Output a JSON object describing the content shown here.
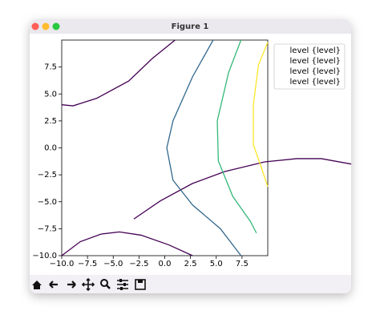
{
  "window": {
    "title": "Figure 1"
  },
  "chart_data": {
    "type": "contour",
    "xlim": [
      -10,
      10
    ],
    "ylim": [
      -10,
      10
    ],
    "xticks": [
      {
        "value": -10,
        "label": "−10.0"
      },
      {
        "value": -7.5,
        "label": "−7.5"
      },
      {
        "value": -5,
        "label": "−5.0"
      },
      {
        "value": -2.5,
        "label": "−2.5"
      },
      {
        "value": 0,
        "label": "0.0"
      },
      {
        "value": 2.5,
        "label": "2.5"
      },
      {
        "value": 5,
        "label": "5.0"
      },
      {
        "value": 7.5,
        "label": "7.5"
      }
    ],
    "yticks": [
      {
        "value": -10,
        "label": "−10.0"
      },
      {
        "value": -7.5,
        "label": "−7.5"
      },
      {
        "value": -5,
        "label": "−5.0"
      },
      {
        "value": -2.5,
        "label": "−2.5"
      },
      {
        "value": 0,
        "label": "0.0"
      },
      {
        "value": 2.5,
        "label": "2.5"
      },
      {
        "value": 5,
        "label": "5.0"
      },
      {
        "value": 7.5,
        "label": "7.5"
      }
    ],
    "legend": "upper right",
    "series": [
      {
        "name": "level {level}",
        "color": "#440154",
        "lines": [
          {
            "x": [
              -10,
              -8.9,
              -6.6,
              -3.5,
              -1.2,
              1.0
            ],
            "y": [
              4.0,
              3.9,
              4.6,
              6.2,
              8.3,
              10
            ]
          },
          {
            "x": [
              -10,
              -8.2,
              -6.2,
              -4.4,
              -2.3,
              0.4,
              2.7
            ],
            "y": [
              -10,
              -8.7,
              -8.0,
              -7.8,
              -8.1,
              -9.0,
              -10
            ]
          },
          {
            "x": [
              -3.0,
              -0.4,
              2.7,
              5.8,
              9.7,
              12.8,
              15.2,
              18.1
            ],
            "y": [
              -6.6,
              -4.9,
              -3.3,
              -2.2,
              -1.3,
              -1.0,
              -1.0,
              -1.5
            ]
          }
        ]
      },
      {
        "name": "level {level}",
        "color": "#31688e",
        "lines": [
          {
            "x": [
              4.7,
              2.7,
              0.8,
              0.2,
              0.8,
              2.7,
              5.4,
              7.4
            ],
            "y": [
              10,
              6.6,
              2.5,
              0,
              -3.0,
              -5.3,
              -7.5,
              -10
            ]
          }
        ]
      },
      {
        "name": "level {level}",
        "color": "#35b779",
        "lines": [
          {
            "x": [
              7.4,
              6.2,
              5.1,
              5.2,
              6.6,
              8.3,
              8.9
            ],
            "y": [
              10,
              7.0,
              2.5,
              -1.2,
              -4.5,
              -6.8,
              -7.9
            ]
          }
        ]
      },
      {
        "name": "level {level}",
        "color": "#fde725",
        "lines": [
          {
            "x": [
              10,
              9.1,
              8.6,
              8.6,
              9.3,
              10
            ],
            "y": [
              9.8,
              7.7,
              4.0,
              0.3,
              -1.6,
              -3.6
            ]
          }
        ]
      }
    ]
  }
}
